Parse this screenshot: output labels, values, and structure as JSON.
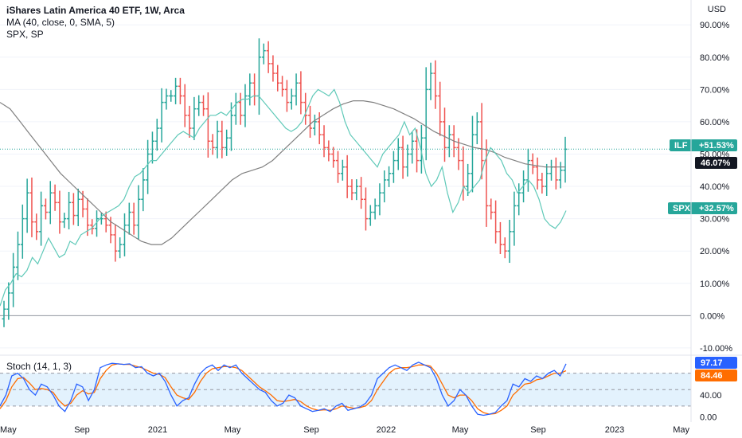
{
  "header": {
    "symbol_title": "iShares Latin America 40 ETF, 1W, Arca",
    "ma_legend": "MA (40, close, 0, SMA, 5)",
    "compare_legend": "SPX, SP",
    "stoch_legend": "Stoch (14, 1, 3)"
  },
  "axis_unit": "USD",
  "badges": {
    "ilf": {
      "label": "ILF",
      "value": "+51.53%"
    },
    "ma": {
      "value": "46.07%"
    },
    "spx": {
      "label": "SPX",
      "value": "+32.57%"
    },
    "stoch_k": {
      "value": "97.17"
    },
    "stoch_d": {
      "value": "84.46"
    }
  },
  "colors": {
    "up": "#26a69a",
    "down": "#ef5350",
    "spx": "#5fc9b8",
    "ma": "#808080",
    "k": "#2962ff",
    "d": "#ff6d00",
    "band": "#e3f2fd",
    "ma_badge": "#131722"
  },
  "chart_data": [
    {
      "type": "line",
      "title": "iShares Latin America 40 ETF, 1W, Arca",
      "ylabel": "USD",
      "yticks": [
        "-10.00%",
        "0.00%",
        "10.00%",
        "20.00%",
        "30.00%",
        "40.00%",
        "50.00%",
        "60.00%",
        "70.00%",
        "80.00%",
        "90.00%"
      ],
      "ylim": [
        -12,
        94
      ],
      "xlabels": [
        "May",
        "Sep",
        "2021",
        "May",
        "Sep",
        "2022",
        "May",
        "Sep",
        "2023",
        "May"
      ],
      "y_unit": "percent change",
      "series": [
        {
          "name": "ILF",
          "style": "ohlc",
          "close": [
            2,
            7,
            15,
            22,
            30,
            38,
            29,
            26,
            34,
            32,
            38,
            35,
            29,
            30,
            35,
            31,
            36,
            33,
            28,
            27,
            30,
            30,
            28,
            25,
            20,
            22,
            28,
            32,
            28,
            36,
            42,
            50,
            54,
            58,
            66,
            68,
            68,
            71,
            68,
            62,
            58,
            64,
            66,
            64,
            54,
            52,
            57,
            52,
            55,
            62,
            66,
            62,
            68,
            72,
            68,
            80,
            82,
            78,
            75,
            72,
            70,
            66,
            68,
            72,
            66,
            62,
            58,
            60,
            56,
            52,
            50,
            48,
            44,
            46,
            40,
            38,
            40,
            36,
            30,
            32,
            34,
            38,
            42,
            44,
            48,
            52,
            46,
            50,
            54,
            48,
            55,
            70,
            75,
            68,
            60,
            52,
            56,
            52,
            48,
            40,
            44,
            56,
            60,
            48,
            34,
            32,
            26,
            22,
            20,
            26,
            34,
            38,
            42,
            48,
            46,
            42,
            40,
            44,
            46,
            42,
            45,
            51.5
          ],
          "last": 51.53
        },
        {
          "name": "MA (40, close, 0, SMA, 5)",
          "values": [
            66,
            64,
            60,
            56,
            52,
            48,
            44,
            41,
            38,
            35,
            32,
            29,
            27,
            25,
            23,
            22,
            22,
            24,
            27,
            30,
            33,
            36,
            39,
            42,
            44,
            45,
            46,
            48,
            51,
            54,
            57,
            60,
            62,
            64,
            65.5,
            66.5,
            66.5,
            66,
            65,
            64,
            62.5,
            61,
            59,
            57,
            55.5,
            54,
            53,
            52,
            51.5,
            50.5,
            49,
            48,
            47,
            46.5,
            46,
            46,
            46
          ],
          "last": 46.07
        },
        {
          "name": "SPX, SP",
          "values": [
            3,
            8,
            10,
            13,
            12,
            14,
            18,
            16,
            20,
            24,
            21,
            18,
            19,
            23,
            22,
            25,
            26,
            27,
            29,
            31,
            32,
            33,
            34,
            36,
            40,
            43,
            44,
            46,
            48,
            48,
            50,
            52,
            54,
            56,
            57,
            56,
            55,
            58,
            60,
            62,
            62,
            63,
            62,
            64,
            66,
            67,
            67,
            68,
            68,
            66,
            64,
            62,
            60,
            58,
            57,
            58,
            60,
            64,
            68,
            70,
            69,
            68,
            70,
            66,
            60,
            56,
            54,
            52,
            50,
            48,
            46,
            50,
            52,
            54,
            56,
            60,
            56,
            58,
            52,
            44,
            40,
            42,
            46,
            38,
            32,
            35,
            40,
            38,
            40,
            42,
            48,
            52,
            50,
            48,
            44,
            42,
            38,
            40,
            42,
            40,
            36,
            30,
            28,
            27,
            29,
            32.5
          ],
          "last": 32.57
        }
      ]
    },
    {
      "type": "line",
      "title": "Stoch (14, 1, 3)",
      "yticks": [
        "0.00",
        "40.00"
      ],
      "ylim": [
        -5,
        110
      ],
      "bands": [
        20,
        80
      ],
      "series": [
        {
          "name": "%K",
          "values": [
            20,
            40,
            75,
            80,
            70,
            50,
            40,
            60,
            55,
            40,
            20,
            10,
            30,
            60,
            55,
            30,
            50,
            90,
            95,
            98,
            97,
            96,
            97,
            90,
            92,
            80,
            75,
            80,
            65,
            40,
            20,
            30,
            35,
            60,
            80,
            90,
            95,
            85,
            95,
            90,
            95,
            80,
            70,
            60,
            50,
            45,
            30,
            20,
            25,
            40,
            35,
            20,
            15,
            10,
            12,
            15,
            10,
            20,
            25,
            12,
            15,
            18,
            25,
            40,
            70,
            80,
            90,
            95,
            90,
            85,
            95,
            100,
            95,
            90,
            70,
            40,
            20,
            30,
            50,
            40,
            20,
            5,
            3,
            5,
            8,
            20,
            30,
            60,
            55,
            70,
            65,
            75,
            70,
            80,
            85,
            75,
            97
          ],
          "last": 97.17
        },
        {
          "name": "%D",
          "values": [
            15,
            30,
            55,
            70,
            72,
            62,
            50,
            52,
            50,
            45,
            30,
            20,
            25,
            40,
            48,
            42,
            45,
            70,
            85,
            95,
            97,
            96,
            96,
            93,
            90,
            85,
            80,
            78,
            72,
            55,
            40,
            35,
            32,
            45,
            65,
            80,
            88,
            90,
            92,
            92,
            90,
            85,
            75,
            65,
            55,
            48,
            40,
            30,
            28,
            30,
            32,
            28,
            20,
            15,
            12,
            13,
            12,
            15,
            20,
            18,
            16,
            17,
            20,
            30,
            50,
            65,
            80,
            88,
            90,
            90,
            92,
            95,
            95,
            93,
            80,
            60,
            40,
            35,
            40,
            40,
            30,
            15,
            8,
            5,
            6,
            12,
            20,
            40,
            50,
            60,
            62,
            68,
            70,
            75,
            80,
            80,
            84.5
          ],
          "last": 84.46
        }
      ]
    }
  ]
}
